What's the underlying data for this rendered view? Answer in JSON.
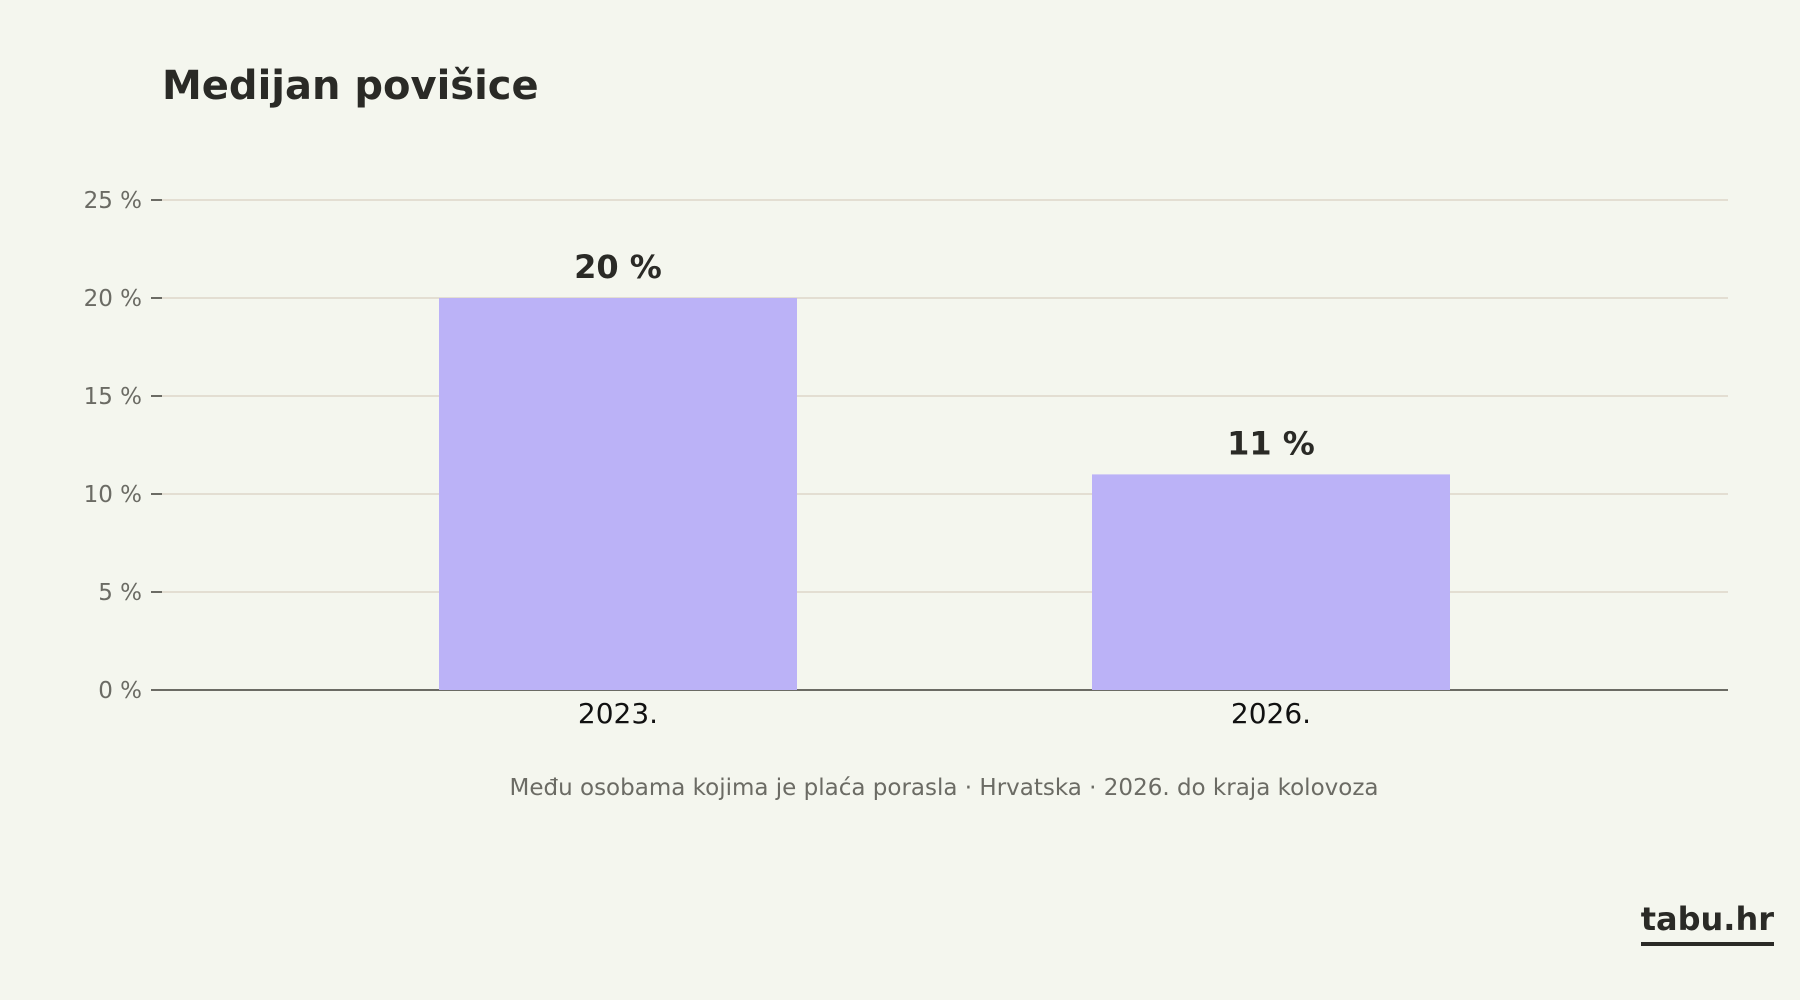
{
  "chart_data": {
    "type": "bar",
    "title": "Medijan povišice",
    "categories": [
      "2023.",
      "2026."
    ],
    "values": [
      20,
      11
    ],
    "value_labels": [
      "20 %",
      "11 %"
    ],
    "y_ticks": [
      0,
      5,
      10,
      15,
      20,
      25
    ],
    "y_tick_labels": [
      "0 %",
      "5 %",
      "10 %",
      "15 %",
      "20 %",
      "25 %"
    ],
    "ylim": [
      0,
      25
    ],
    "xlabel": "",
    "ylabel": "",
    "grid": true,
    "legend": "none",
    "bar_color": "#bbb2f7",
    "grid_color": "#e3ded2",
    "axis_color": "#6b6b64",
    "text_color": "#2a2a26",
    "note": "Među osobama kojima je plaća porasla  ·  Hrvatska  ·  2026. do kraja kolovoza"
  },
  "brand": {
    "text": "tabu.hr"
  }
}
